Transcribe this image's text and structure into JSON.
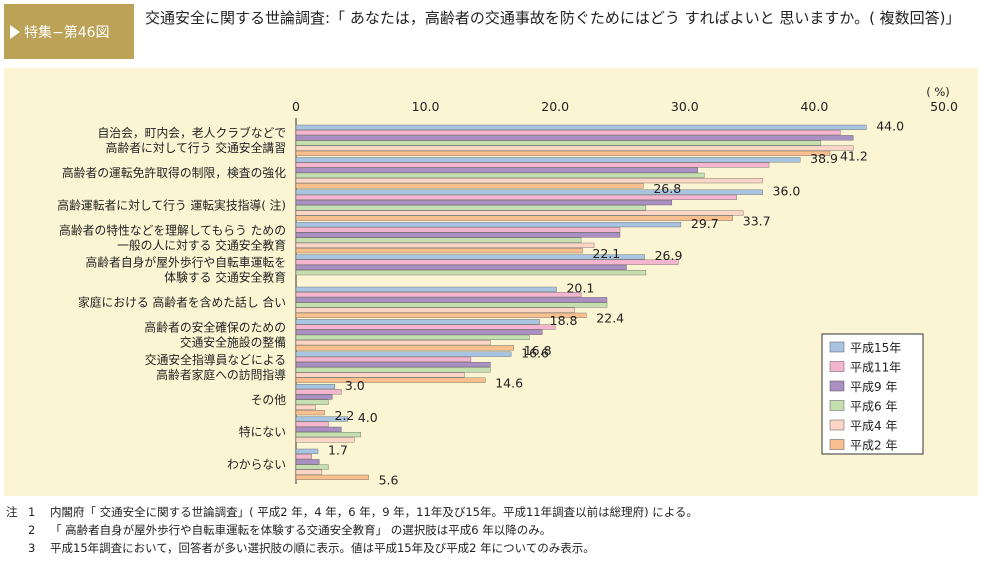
{
  "badge": "特集−第46図",
  "title": "交通安全に関する世論調査:「 あなたは，高齢者の交通事故を防ぐためにはどう すればよいと 思いますか。( 複数回答)」",
  "colors": {
    "panel_bg": "#fbf5d3",
    "badge_bg": "#bba257",
    "H15": "#a9c4e0",
    "H11": "#f4b6cf",
    "H9": "#a98fc2",
    "H6": "#c6dfb1",
    "H4": "#fbd6c6",
    "H2": "#f7c08e"
  },
  "chart_data": {
    "type": "bar",
    "orientation": "horizontal",
    "unit_label": "( %)",
    "xlim": [
      0,
      50
    ],
    "xticks": [
      "0",
      "10.0",
      "20.0",
      "30.0",
      "40.0",
      "50.0"
    ],
    "categories": [
      [
        "自治会，町内会，老人クラブなどで",
        "高齢者に対して行う 交通安全講習"
      ],
      [
        "高齢者の運転免許取得の制限，検査の強化"
      ],
      [
        "高齢運転者に対して行う 運転実技指導( 注)"
      ],
      [
        "高齢者の特性などを理解してもらう ための",
        "一般の人に対する 交通安全教育"
      ],
      [
        "高齢者自身が屋外歩行や自転車運転を",
        "体験する 交通安全教育"
      ],
      [
        "家庭における 高齢者を含めた話し 合い"
      ],
      [
        "高齢者の安全確保のための",
        "交通安全施設の整備"
      ],
      [
        "交通安全指導員などによる",
        "高齢者家庭への訪問指導"
      ],
      [
        "その他"
      ],
      [
        "特にない"
      ],
      [
        "わからない"
      ]
    ],
    "series": [
      {
        "name": "平成15年",
        "key": "H15",
        "values": [
          44.0,
          38.9,
          36.0,
          29.7,
          26.9,
          20.1,
          18.8,
          16.6,
          3.0,
          4.0,
          1.7
        ]
      },
      {
        "name": "平成11年",
        "key": "H11",
        "values": [
          42.0,
          36.5,
          34.0,
          25.0,
          29.5,
          22.0,
          20.0,
          13.5,
          3.5,
          2.5,
          1.2
        ]
      },
      {
        "name": "平成9 年",
        "key": "H9",
        "values": [
          43.0,
          31.0,
          29.0,
          25.0,
          25.5,
          24.0,
          19.0,
          15.0,
          2.8,
          3.5,
          1.8
        ]
      },
      {
        "name": "平成6 年",
        "key": "H6",
        "values": [
          40.5,
          31.5,
          27.0,
          22.0,
          27.0,
          24.0,
          18.0,
          15.0,
          2.5,
          5.0,
          2.5
        ]
      },
      {
        "name": "平成4 年",
        "key": "H4",
        "values": [
          43.0,
          36.0,
          34.5,
          23.0,
          null,
          21.5,
          15.0,
          13.0,
          1.5,
          4.5,
          2.0
        ]
      },
      {
        "name": "平成2 年",
        "key": "H2",
        "values": [
          41.2,
          26.8,
          33.7,
          22.1,
          null,
          22.4,
          16.8,
          14.6,
          2.2,
          null,
          5.6
        ]
      }
    ],
    "data_labels": [
      {
        "cat": 0,
        "series": "H15",
        "text": "44.0"
      },
      {
        "cat": 0,
        "series": "H2",
        "text": "41.2"
      },
      {
        "cat": 1,
        "series": "H15",
        "text": "38.9"
      },
      {
        "cat": 1,
        "series": "H2",
        "text": "26.8"
      },
      {
        "cat": 2,
        "series": "H15",
        "text": "36.0"
      },
      {
        "cat": 2,
        "series": "H2",
        "text": "33.7"
      },
      {
        "cat": 3,
        "series": "H15",
        "text": "29.7"
      },
      {
        "cat": 3,
        "series": "H2",
        "text": "22.1"
      },
      {
        "cat": 4,
        "series": "H15",
        "text": "26.9"
      },
      {
        "cat": 5,
        "series": "H15",
        "text": "20.1"
      },
      {
        "cat": 5,
        "series": "H2",
        "text": "22.4"
      },
      {
        "cat": 6,
        "series": "H15",
        "text": "18.8"
      },
      {
        "cat": 6,
        "series": "H2",
        "text": "16.8"
      },
      {
        "cat": 7,
        "series": "H15",
        "text": "16.6"
      },
      {
        "cat": 7,
        "series": "H2",
        "text": "14.6"
      },
      {
        "cat": 8,
        "series": "H15",
        "text": "3.0"
      },
      {
        "cat": 8,
        "series": "H2",
        "text": "2.2"
      },
      {
        "cat": 9,
        "series": "H15",
        "text": "4.0"
      },
      {
        "cat": 10,
        "series": "H15",
        "text": "1.7"
      },
      {
        "cat": 10,
        "series": "H2",
        "text": "5.6"
      }
    ],
    "legend_position": "bottom-right"
  },
  "notes": [
    {
      "lead": "注",
      "num": "1",
      "text": "内閣府「 交通安全に関する世論調査」( 平成2 年，4 年，6 年，9 年，11年及び15年。平成11年調査以前は総理府) による。"
    },
    {
      "lead": "",
      "num": "2",
      "text": "「 高齢者自身が屋外歩行や自転車運転を体験する交通安全教育」 の選択肢は平成6 年以降のみ。"
    },
    {
      "lead": "",
      "num": "3",
      "text": "平成15年調査において，回答者が多い選択肢の順に表示。値は平成15年及び平成2 年についてのみ表示。"
    }
  ]
}
